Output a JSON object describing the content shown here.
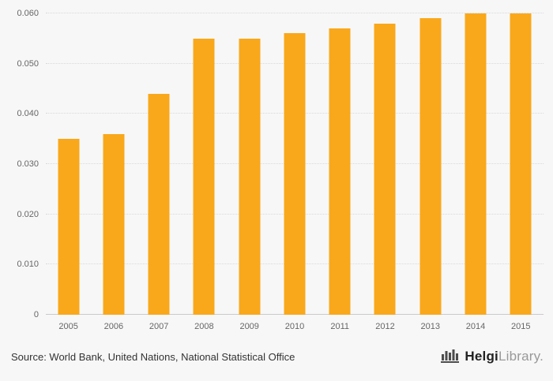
{
  "chart_data": {
    "type": "bar",
    "categories": [
      "2005",
      "2006",
      "2007",
      "2008",
      "2009",
      "2010",
      "2011",
      "2012",
      "2013",
      "2014",
      "2015"
    ],
    "values": [
      0.035,
      0.036,
      0.044,
      0.055,
      0.055,
      0.056,
      0.057,
      0.058,
      0.059,
      0.06,
      0.06
    ],
    "title": "",
    "xlabel": "",
    "ylabel": "",
    "ylim": [
      0,
      0.06
    ],
    "yticks": [
      0,
      0.01,
      0.02,
      0.03,
      0.04,
      0.05,
      0.06
    ],
    "ytick_labels": [
      "0",
      "0.010",
      "0.020",
      "0.030",
      "0.040",
      "0.050",
      "0.060"
    ],
    "bar_color": "#f9a81b",
    "grid": true,
    "legend": false
  },
  "footer": {
    "source": "Source: World Bank, United Nations, National Statistical Office",
    "brand": {
      "name_bold": "Helgi",
      "name_light": "Library.",
      "icon": "bar-chart-logo-icon"
    }
  },
  "colors": {
    "background": "#f7f7f7",
    "bar": "#f9a81b",
    "axis_line": "#c9c9c9",
    "gridline": "#d9d9d9",
    "tick_text": "#666666",
    "source_text": "#333333",
    "logo_icon": "#4d4d4d"
  }
}
